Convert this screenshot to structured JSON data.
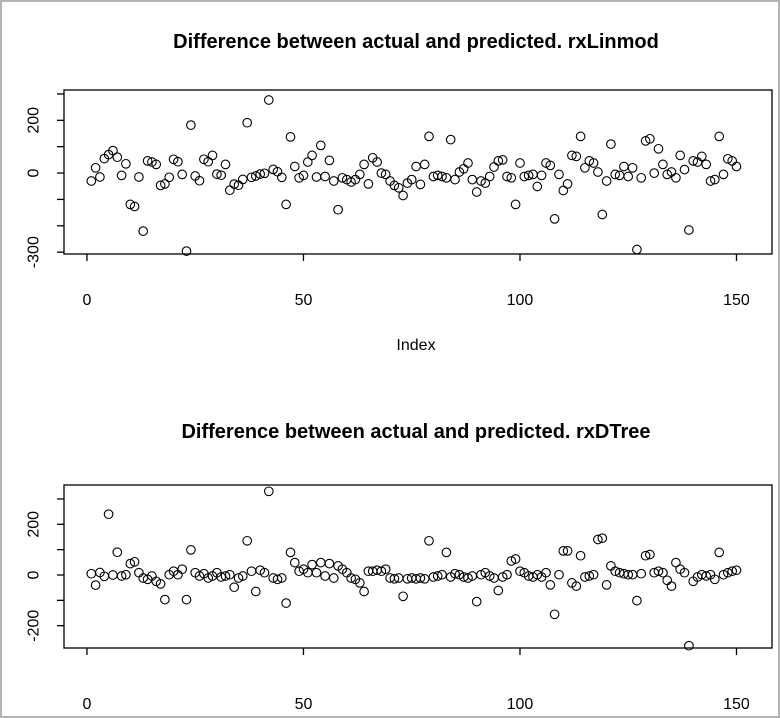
{
  "window": {
    "background": "#ffffff",
    "border_color": "#b4b4b4",
    "foreground": "#000000"
  },
  "chart_data": [
    {
      "type": "scatter",
      "title": "Difference between actual and predicted. rxLinmod",
      "xlabel": "Index",
      "ylabel": "",
      "marker": "open-circle",
      "marker_color": "#000000",
      "grid": false,
      "legend": "none",
      "xlim": [
        -5.3,
        158.2
      ],
      "ylim": [
        -307,
        315
      ],
      "xticks": [
        0,
        50,
        100,
        150
      ],
      "yticks": [
        300,
        200,
        100,
        0,
        -100,
        -200,
        -300
      ],
      "ytick_labels_shown": [
        "200",
        "0",
        "-300"
      ],
      "x_description": "Index (1-150)",
      "values": [
        -30,
        20,
        -15,
        55,
        70,
        85,
        60,
        -9,
        35,
        -119,
        -127,
        -15,
        -220,
        46,
        42,
        33,
        -47,
        -41,
        -16,
        52,
        43,
        -5,
        -296,
        182,
        -11,
        -29,
        52,
        43,
        67,
        -4,
        -8,
        33,
        -65,
        -42,
        -46,
        -24,
        191,
        -16,
        -11,
        -4,
        -1,
        277,
        14,
        5,
        -16,
        -119,
        137,
        25,
        -18,
        -9,
        42,
        67,
        -15,
        105,
        -13,
        48,
        -30,
        -139,
        -18,
        -25,
        -34,
        -25,
        -5,
        33,
        -41,
        58,
        42,
        0,
        -5,
        -30,
        -47,
        -56,
        -85,
        -38,
        -25,
        25,
        -43,
        33,
        139,
        -13,
        -9,
        -13,
        -18,
        127,
        -25,
        4,
        16,
        38,
        -25,
        -72,
        -30,
        -38,
        -13,
        23,
        46,
        50,
        -13,
        -18,
        -119,
        38,
        -13,
        -9,
        -5,
        -51,
        -9,
        38,
        29,
        -174,
        -5,
        -66,
        -41,
        67,
        63,
        139,
        20,
        46,
        38,
        4,
        -157,
        -30,
        110,
        -5,
        -9,
        25,
        -13,
        20,
        -290,
        -18,
        122,
        130,
        0,
        92,
        33,
        -5,
        4,
        -18,
        67,
        13,
        -216,
        46,
        42,
        63,
        33,
        -30,
        -25,
        139,
        -5,
        54,
        46,
        25
      ]
    },
    {
      "type": "scatter",
      "title": "Difference between actual and predicted. rxDTree",
      "xlabel": "",
      "ylabel": "",
      "marker": "open-circle",
      "marker_color": "#000000",
      "grid": false,
      "legend": "none",
      "xlim": [
        -5.3,
        158.2
      ],
      "ylim": [
        -288,
        355
      ],
      "xticks": [
        0,
        50,
        100,
        150
      ],
      "yticks": [
        300,
        200,
        100,
        0,
        -100,
        -200
      ],
      "ytick_labels_shown": [
        "200",
        "0",
        "-200"
      ],
      "x_description": "Index (1-150)",
      "values": [
        5,
        -40,
        10,
        -5,
        240,
        0,
        90,
        -4,
        1,
        45,
        52,
        9,
        -12,
        -17,
        -4,
        -25,
        -35,
        -97,
        1,
        15,
        1,
        23,
        -97,
        99,
        9,
        -4,
        5,
        -12,
        -4,
        9,
        -8,
        -4,
        1,
        -48,
        -12,
        -4,
        135,
        15,
        -65,
        19,
        9,
        330,
        -12,
        -17,
        -12,
        -111,
        89,
        49,
        15,
        23,
        9,
        41,
        9,
        49,
        -4,
        45,
        -12,
        36,
        23,
        9,
        -12,
        -17,
        -31,
        -65,
        15,
        15,
        19,
        15,
        23,
        -12,
        -15,
        -12,
        -84,
        -15,
        -12,
        -15,
        -12,
        -15,
        135,
        -8,
        -4,
        1,
        89,
        -8,
        5,
        1,
        -8,
        -12,
        -4,
        -105,
        1,
        9,
        -4,
        -12,
        -61,
        -8,
        1,
        55,
        63,
        15,
        9,
        -4,
        -8,
        1,
        -8,
        9,
        -39,
        -155,
        1,
        95,
        95,
        -31,
        -44,
        76,
        -8,
        -4,
        1,
        140,
        145,
        -39,
        36,
        15,
        9,
        5,
        1,
        1,
        -101,
        5,
        76,
        81,
        9,
        15,
        9,
        -21,
        -44,
        49,
        23,
        9,
        -279,
        -25,
        -8,
        1,
        -4,
        1,
        -17,
        89,
        1,
        9,
        15,
        19
      ]
    }
  ]
}
